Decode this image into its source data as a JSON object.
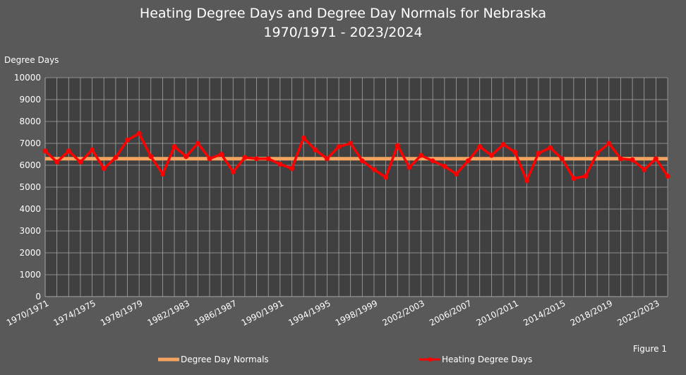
{
  "chart_data": {
    "type": "line",
    "title": "Heating Degree Days and Degree Day Normals for Nebraska",
    "subtitle": "1970/1971 - 2023/2024",
    "ylabel": "Degree Days",
    "xlabel": "",
    "ylim": [
      0,
      10000
    ],
    "ytick_step": 1000,
    "grid": true,
    "legend_position": "bottom",
    "x_tick_labels": [
      "1970/1971",
      "1974/1975",
      "1978/1979",
      "1982/1983",
      "1986/1987",
      "1990/1991",
      "1994/1995",
      "1998/1999",
      "2002/2003",
      "2006/2007",
      "2010/2011",
      "2014/2015",
      "2018/2019",
      "2022/2023"
    ],
    "x": [
      "1970/1971",
      "1971/1972",
      "1972/1973",
      "1973/1974",
      "1974/1975",
      "1975/1976",
      "1976/1977",
      "1977/1978",
      "1978/1979",
      "1979/1980",
      "1980/1981",
      "1981/1982",
      "1982/1983",
      "1983/1984",
      "1984/1985",
      "1985/1986",
      "1986/1987",
      "1987/1988",
      "1988/1989",
      "1989/1990",
      "1990/1991",
      "1991/1992",
      "1992/1993",
      "1993/1994",
      "1994/1995",
      "1995/1996",
      "1996/1997",
      "1997/1998",
      "1998/1999",
      "1999/2000",
      "2000/2001",
      "2001/2002",
      "2002/2003",
      "2003/2004",
      "2004/2005",
      "2005/2006",
      "2006/2007",
      "2007/2008",
      "2008/2009",
      "2009/2010",
      "2010/2011",
      "2011/2012",
      "2012/2013",
      "2013/2014",
      "2014/2015",
      "2015/2016",
      "2016/2017",
      "2017/2018",
      "2018/2019",
      "2019/2020",
      "2020/2021",
      "2021/2022",
      "2022/2023",
      "2023/2024"
    ],
    "series": [
      {
        "name": "Degree Day Normals",
        "color": "#f4a460",
        "values": [
          6300,
          6300,
          6300,
          6300,
          6300,
          6300,
          6300,
          6300,
          6300,
          6300,
          6300,
          6300,
          6300,
          6300,
          6300,
          6300,
          6300,
          6300,
          6300,
          6300,
          6300,
          6300,
          6300,
          6300,
          6300,
          6300,
          6300,
          6300,
          6300,
          6300,
          6300,
          6300,
          6300,
          6300,
          6300,
          6300,
          6300,
          6300,
          6300,
          6300,
          6300,
          6300,
          6300,
          6300,
          6300,
          6300,
          6300,
          6300,
          6300,
          6300,
          6300,
          6300,
          6300,
          6300
        ]
      },
      {
        "name": "Heating Degree Days",
        "color": "#ff0000",
        "values": [
          6650,
          6150,
          6650,
          6150,
          6700,
          5850,
          6350,
          7150,
          7450,
          6400,
          5600,
          6850,
          6400,
          7000,
          6300,
          6500,
          5700,
          6350,
          6300,
          6300,
          6050,
          5850,
          7250,
          6700,
          6300,
          6850,
          7000,
          6200,
          5800,
          5450,
          6900,
          5900,
          6450,
          6200,
          5950,
          5600,
          6200,
          6850,
          6450,
          6950,
          6600,
          5300,
          6550,
          6800,
          6300,
          5400,
          5500,
          6550,
          7000,
          6300,
          6250,
          5800,
          6300,
          5500
        ]
      }
    ]
  },
  "figure_label": "Figure 1",
  "colors": {
    "background": "#595959",
    "plot_background": "#404040",
    "grid": "#a6a6a6",
    "text": "#ffffff"
  }
}
